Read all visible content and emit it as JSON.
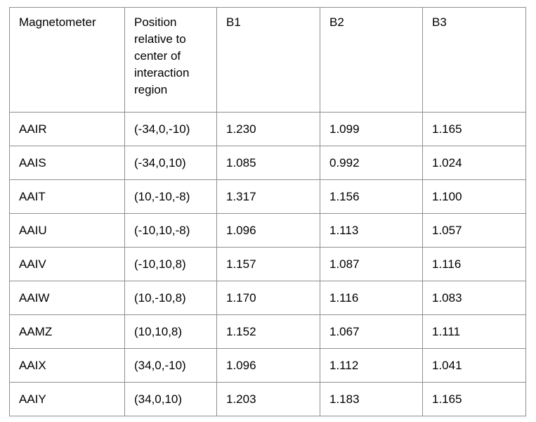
{
  "table": {
    "columns": [
      "Magnetometer",
      "Position relative to center of interaction region",
      "B1",
      "B2",
      "B3"
    ],
    "rows": [
      [
        "AAIR",
        "(-34,0,-10)",
        "1.230",
        "1.099",
        "1.165"
      ],
      [
        "AAIS",
        "(-34,0,10)",
        "1.085",
        "0.992",
        "1.024"
      ],
      [
        "AAIT",
        "(10,-10,-8)",
        "1.317",
        "1.156",
        "1.100"
      ],
      [
        "AAIU",
        "(-10,10,-8)",
        "1.096",
        "1.113",
        "1.057"
      ],
      [
        "AAIV",
        "(-10,10,8)",
        "1.157",
        "1.087",
        "1.116"
      ],
      [
        "AAIW",
        "(10,-10,8)",
        "1.170",
        "1.116",
        "1.083"
      ],
      [
        "AAMZ",
        "(10,10,8)",
        "1.152",
        "1.067",
        "1.111"
      ],
      [
        "AAIX",
        "(34,0,-10)",
        "1.096",
        "1.112",
        "1.041"
      ],
      [
        "AAIY",
        "(34,0,10)",
        "1.203",
        "1.183",
        "1.165"
      ]
    ],
    "style": {
      "border_color": "#8f8f8f",
      "text_color": "#000000",
      "background": "#ffffff"
    }
  }
}
